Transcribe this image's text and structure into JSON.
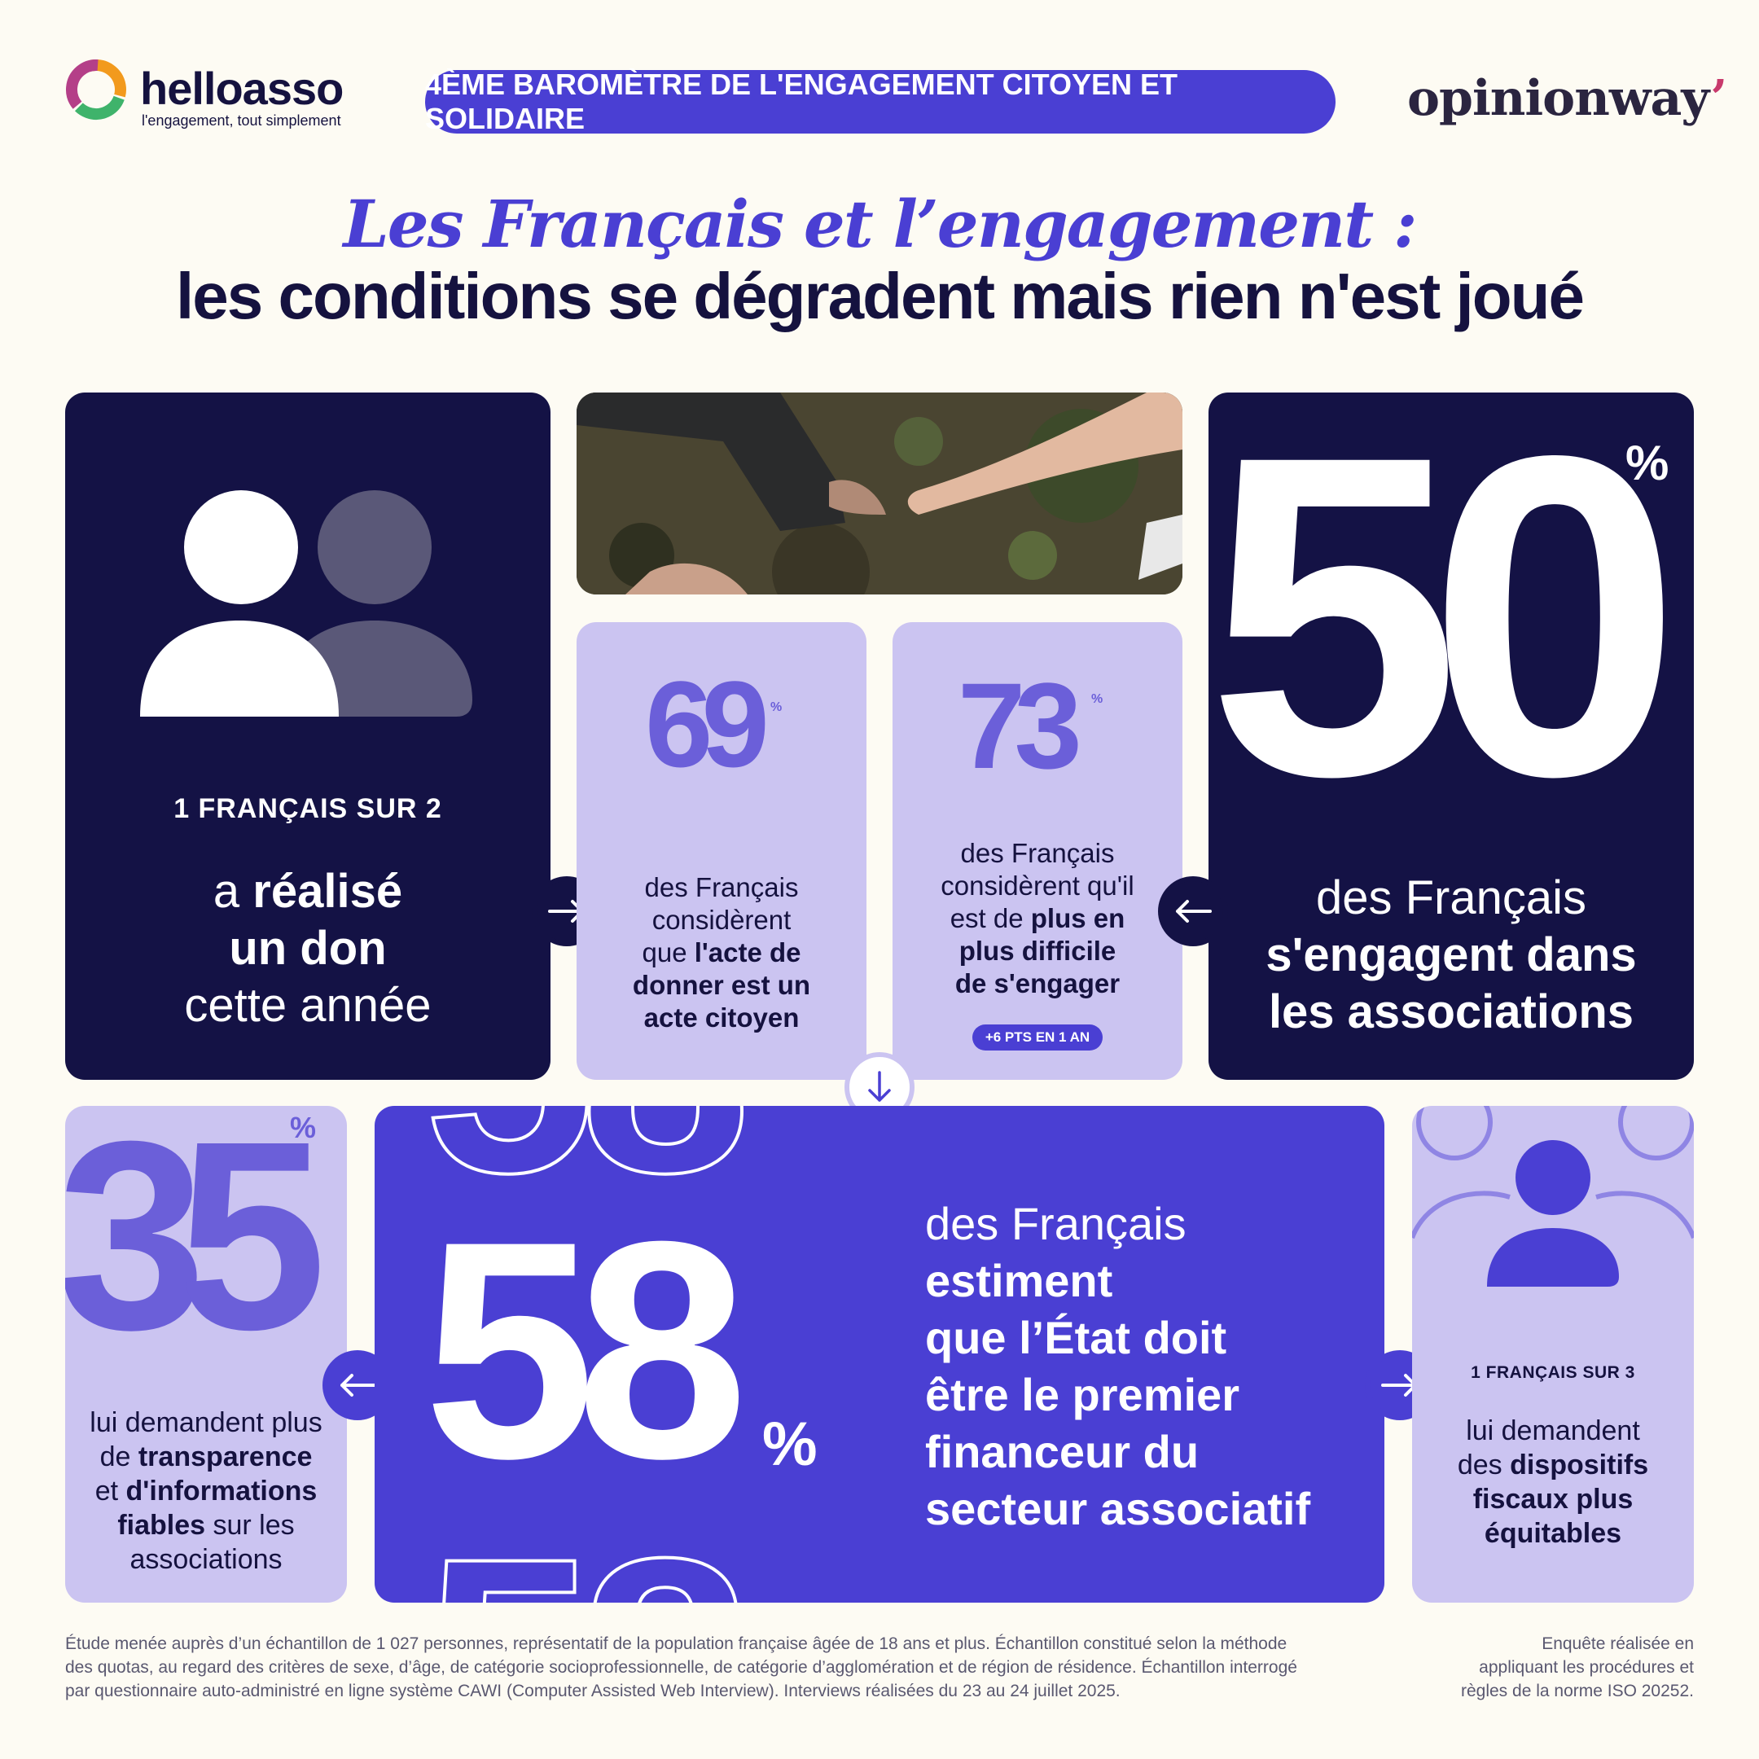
{
  "header": {
    "brand": "helloasso",
    "brand_tagline": "l'engagement, tout simplement",
    "banner": "4ÈME BAROMÈTRE DE L'ENGAGEMENT CITOYEN ET SOLIDAIRE",
    "partner": "opinionway",
    "partner_apostrophe": "’"
  },
  "title": {
    "line1": "Les Français et l’engagement :",
    "line2": "les conditions se dégradent mais rien n'est joué"
  },
  "card_don": {
    "kicker": "1 FRANÇAIS SUR 2",
    "line1_a": "a ",
    "line1_b": "réalisé",
    "line2": "un don",
    "line3": "cette année"
  },
  "card_69": {
    "number": "69",
    "pct": "%",
    "l1": "des Français",
    "l2": "considèrent",
    "l3_a": "que ",
    "l3_b": "l'acte de",
    "l4": "donner est un",
    "l5": "acte citoyen"
  },
  "card_73": {
    "number": "73",
    "pct": "%",
    "l1": "des Français",
    "l2": "considèrent qu'il",
    "l3_a": "est de ",
    "l3_b": "plus en",
    "l4": "plus difficile",
    "l5": "de s'engager",
    "badge": "+6 PTS EN 1 AN"
  },
  "card_50": {
    "number": "50",
    "pct": "%",
    "l1": "des Français",
    "l2": "s'engagent dans",
    "l3": "les associations"
  },
  "card_35": {
    "number": "35",
    "pct": "%",
    "l1": "lui demandent plus",
    "l2_a": "de ",
    "l2_b": "transparence",
    "l3_a": "et ",
    "l3_b": "d'informations",
    "l4_a": "fiables",
    "l4_b": " sur les",
    "l5": "associations"
  },
  "card_58": {
    "number": "58",
    "pct": "%",
    "l1": "des Français",
    "l2": "estiment",
    "l3": "que l’État doit",
    "l4": "être le premier",
    "l5": "financeur du",
    "l6": "secteur associatif"
  },
  "card_1sur3": {
    "kicker": "1 FRANÇAIS SUR 3",
    "l1": "lui demandent",
    "l2_a": "des ",
    "l2_b": "dispositifs",
    "l3": "fiscaux plus",
    "l4": "équitables"
  },
  "footer": {
    "method_1": "Étude menée auprès d’un échantillon de 1 027 personnes, représentatif de la population française âgée de 18 ans et plus. Échantillon constitué selon la méthode",
    "method_2": "des quotas, au regard des critères de sexe, d’âge, de catégorie socioprofessionnelle, de catégorie d’agglomération et de région de résidence. Échantillon interrogé",
    "method_3": "par questionnaire auto-administré en ligne   système CAWI (Computer Assisted Web Interview). Interviews réalisées du 23 au 24 juillet 2025.",
    "iso_1": "Enquête réalisée en",
    "iso_2": "appliquant les procédures et",
    "iso_3": "règles de la norme ISO 20252."
  },
  "colors": {
    "navy": "#141245",
    "purple": "#4a3fd3",
    "lavender": "#cbc4f1",
    "background": "#fdfbf3"
  },
  "icons": [
    "helloasso-logo",
    "people-icon",
    "arrow-right-icon",
    "arrow-left-icon",
    "arrow-down-icon",
    "person-group-icon"
  ]
}
